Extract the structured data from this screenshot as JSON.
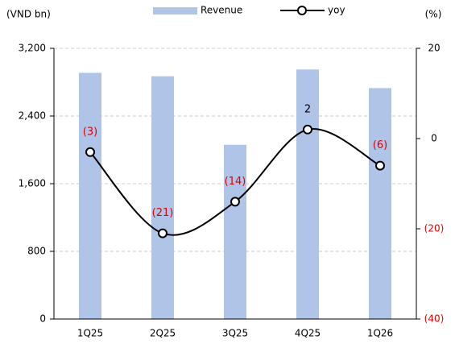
{
  "chart_data": {
    "type": "bar_line",
    "y_label": "(VND bn)",
    "y2_label": "(%)",
    "categories": [
      "1Q25",
      "2Q25",
      "3Q25",
      "4Q25",
      "1Q26"
    ],
    "series": [
      {
        "name": "Revenue",
        "type": "bar",
        "color": "#b0c4e8",
        "values": [
          2910,
          2870,
          2060,
          2950,
          2730
        ]
      },
      {
        "name": "yoy",
        "type": "line",
        "axis": "y2",
        "color": "#000000",
        "values": [
          -3,
          -21,
          -14,
          2,
          -6
        ],
        "value_labels": [
          "(3)",
          "(21)",
          "(14)",
          "2",
          "(6)"
        ]
      }
    ],
    "ylim": [
      0,
      3200
    ],
    "yticks": [
      0,
      800,
      {
        "value": 1600,
        "label": "1,600"
      },
      {
        "value": 2400,
        "label": "2,400"
      },
      {
        "value": 3200,
        "label": "3,200"
      }
    ],
    "y2lim": [
      -40,
      20
    ],
    "y2ticks": [
      {
        "value": -40,
        "label": "(40)"
      },
      {
        "value": -20,
        "label": "(20)"
      },
      0,
      20
    ],
    "grid": true,
    "legend": "top"
  }
}
